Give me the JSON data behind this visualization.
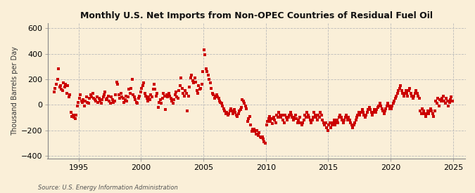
{
  "title": "Monthly U.S. Net Imports from Non-OPEC Countries of Residual Fuel Oil",
  "ylabel": "Thousand Barrels per Day",
  "source": "Source: U.S. Energy Information Administration",
  "background_color": "#faefd8",
  "marker_color": "#cc0000",
  "xlim": [
    1992.5,
    2026.0
  ],
  "ylim": [
    -420,
    640
  ],
  "yticks": [
    -400,
    -200,
    0,
    200,
    400,
    600
  ],
  "xticks": [
    1995,
    2000,
    2005,
    2010,
    2015,
    2020,
    2025
  ],
  "data": [
    [
      1993.04,
      100
    ],
    [
      1993.12,
      130
    ],
    [
      1993.21,
      160
    ],
    [
      1993.29,
      200
    ],
    [
      1993.37,
      280
    ],
    [
      1993.46,
      140
    ],
    [
      1993.54,
      150
    ],
    [
      1993.62,
      120
    ],
    [
      1993.71,
      110
    ],
    [
      1993.79,
      170
    ],
    [
      1993.87,
      140
    ],
    [
      1993.96,
      160
    ],
    [
      1994.04,
      90
    ],
    [
      1994.12,
      150
    ],
    [
      1994.21,
      60
    ],
    [
      1994.29,
      80
    ],
    [
      1994.37,
      -60
    ],
    [
      1994.46,
      -90
    ],
    [
      1994.54,
      -80
    ],
    [
      1994.62,
      -100
    ],
    [
      1994.71,
      -110
    ],
    [
      1994.79,
      -80
    ],
    [
      1994.87,
      -10
    ],
    [
      1994.96,
      20
    ],
    [
      1995.04,
      50
    ],
    [
      1995.12,
      80
    ],
    [
      1995.21,
      30
    ],
    [
      1995.29,
      20
    ],
    [
      1995.37,
      40
    ],
    [
      1995.46,
      -10
    ],
    [
      1995.54,
      30
    ],
    [
      1995.62,
      60
    ],
    [
      1995.71,
      20
    ],
    [
      1995.79,
      10
    ],
    [
      1995.87,
      50
    ],
    [
      1995.96,
      80
    ],
    [
      1996.04,
      60
    ],
    [
      1996.12,
      90
    ],
    [
      1996.21,
      50
    ],
    [
      1996.29,
      40
    ],
    [
      1996.37,
      30
    ],
    [
      1996.46,
      60
    ],
    [
      1996.54,
      20
    ],
    [
      1996.62,
      50
    ],
    [
      1996.71,
      30
    ],
    [
      1996.79,
      10
    ],
    [
      1996.87,
      40
    ],
    [
      1996.96,
      60
    ],
    [
      1997.04,
      80
    ],
    [
      1997.12,
      100
    ],
    [
      1997.21,
      40
    ],
    [
      1997.29,
      50
    ],
    [
      1997.37,
      70
    ],
    [
      1997.46,
      30
    ],
    [
      1997.54,
      10
    ],
    [
      1997.62,
      60
    ],
    [
      1997.71,
      40
    ],
    [
      1997.79,
      20
    ],
    [
      1997.87,
      30
    ],
    [
      1997.96,
      80
    ],
    [
      1998.04,
      180
    ],
    [
      1998.12,
      160
    ],
    [
      1998.21,
      80
    ],
    [
      1998.29,
      50
    ],
    [
      1998.37,
      90
    ],
    [
      1998.46,
      60
    ],
    [
      1998.54,
      50
    ],
    [
      1998.62,
      20
    ],
    [
      1998.71,
      40
    ],
    [
      1998.79,
      70
    ],
    [
      1998.87,
      30
    ],
    [
      1998.96,
      60
    ],
    [
      1999.04,
      120
    ],
    [
      1999.12,
      90
    ],
    [
      1999.21,
      130
    ],
    [
      1999.29,
      200
    ],
    [
      1999.37,
      80
    ],
    [
      1999.46,
      60
    ],
    [
      1999.54,
      40
    ],
    [
      1999.62,
      20
    ],
    [
      1999.71,
      10
    ],
    [
      1999.79,
      50
    ],
    [
      1999.87,
      70
    ],
    [
      1999.96,
      100
    ],
    [
      2000.04,
      130
    ],
    [
      2000.12,
      150
    ],
    [
      2000.21,
      170
    ],
    [
      2000.29,
      90
    ],
    [
      2000.37,
      70
    ],
    [
      2000.46,
      50
    ],
    [
      2000.54,
      30
    ],
    [
      2000.62,
      60
    ],
    [
      2000.71,
      40
    ],
    [
      2000.79,
      80
    ],
    [
      2000.87,
      60
    ],
    [
      2000.96,
      120
    ],
    [
      2001.04,
      160
    ],
    [
      2001.12,
      120
    ],
    [
      2001.21,
      70
    ],
    [
      2001.29,
      90
    ],
    [
      2001.37,
      -20
    ],
    [
      2001.46,
      20
    ],
    [
      2001.54,
      40
    ],
    [
      2001.62,
      10
    ],
    [
      2001.71,
      50
    ],
    [
      2001.79,
      90
    ],
    [
      2001.87,
      70
    ],
    [
      2001.96,
      -40
    ],
    [
      2002.04,
      80
    ],
    [
      2002.12,
      60
    ],
    [
      2002.21,
      90
    ],
    [
      2002.29,
      70
    ],
    [
      2002.37,
      50
    ],
    [
      2002.46,
      30
    ],
    [
      2002.54,
      10
    ],
    [
      2002.62,
      40
    ],
    [
      2002.71,
      80
    ],
    [
      2002.79,
      100
    ],
    [
      2002.87,
      60
    ],
    [
      2002.96,
      50
    ],
    [
      2003.04,
      110
    ],
    [
      2003.12,
      150
    ],
    [
      2003.21,
      210
    ],
    [
      2003.29,
      130
    ],
    [
      2003.37,
      90
    ],
    [
      2003.46,
      70
    ],
    [
      2003.54,
      110
    ],
    [
      2003.62,
      90
    ],
    [
      2003.71,
      -50
    ],
    [
      2003.79,
      70
    ],
    [
      2003.87,
      140
    ],
    [
      2003.96,
      210
    ],
    [
      2004.04,
      230
    ],
    [
      2004.12,
      190
    ],
    [
      2004.21,
      170
    ],
    [
      2004.29,
      210
    ],
    [
      2004.37,
      180
    ],
    [
      2004.46,
      110
    ],
    [
      2004.54,
      90
    ],
    [
      2004.62,
      150
    ],
    [
      2004.71,
      120
    ],
    [
      2004.79,
      130
    ],
    [
      2004.87,
      160
    ],
    [
      2004.96,
      260
    ],
    [
      2005.04,
      430
    ],
    [
      2005.12,
      390
    ],
    [
      2005.21,
      280
    ],
    [
      2005.29,
      260
    ],
    [
      2005.37,
      230
    ],
    [
      2005.46,
      200
    ],
    [
      2005.54,
      170
    ],
    [
      2005.62,
      130
    ],
    [
      2005.71,
      90
    ],
    [
      2005.79,
      80
    ],
    [
      2005.87,
      50
    ],
    [
      2005.96,
      70
    ],
    [
      2006.04,
      80
    ],
    [
      2006.12,
      60
    ],
    [
      2006.21,
      50
    ],
    [
      2006.29,
      30
    ],
    [
      2006.37,
      20
    ],
    [
      2006.46,
      10
    ],
    [
      2006.54,
      -10
    ],
    [
      2006.62,
      -30
    ],
    [
      2006.71,
      -50
    ],
    [
      2006.79,
      -70
    ],
    [
      2006.87,
      -60
    ],
    [
      2006.96,
      -80
    ],
    [
      2007.04,
      -70
    ],
    [
      2007.12,
      -50
    ],
    [
      2007.21,
      -30
    ],
    [
      2007.29,
      -50
    ],
    [
      2007.37,
      -70
    ],
    [
      2007.46,
      -40
    ],
    [
      2007.54,
      -60
    ],
    [
      2007.62,
      -80
    ],
    [
      2007.71,
      -90
    ],
    [
      2007.79,
      -70
    ],
    [
      2007.87,
      -50
    ],
    [
      2007.96,
      -40
    ],
    [
      2008.04,
      -20
    ],
    [
      2008.12,
      40
    ],
    [
      2008.21,
      30
    ],
    [
      2008.29,
      10
    ],
    [
      2008.37,
      -10
    ],
    [
      2008.46,
      -30
    ],
    [
      2008.54,
      -130
    ],
    [
      2008.62,
      -110
    ],
    [
      2008.71,
      -90
    ],
    [
      2008.79,
      -160
    ],
    [
      2008.87,
      -210
    ],
    [
      2008.96,
      -190
    ],
    [
      2009.04,
      -190
    ],
    [
      2009.12,
      -210
    ],
    [
      2009.21,
      -230
    ],
    [
      2009.29,
      -200
    ],
    [
      2009.37,
      -240
    ],
    [
      2009.46,
      -220
    ],
    [
      2009.54,
      -250
    ],
    [
      2009.62,
      -260
    ],
    [
      2009.71,
      -250
    ],
    [
      2009.79,
      -270
    ],
    [
      2009.87,
      -290
    ],
    [
      2009.96,
      -300
    ],
    [
      2010.04,
      -160
    ],
    [
      2010.12,
      -130
    ],
    [
      2010.21,
      -110
    ],
    [
      2010.29,
      -90
    ],
    [
      2010.37,
      -130
    ],
    [
      2010.46,
      -110
    ],
    [
      2010.54,
      -150
    ],
    [
      2010.62,
      -100
    ],
    [
      2010.71,
      -120
    ],
    [
      2010.79,
      -140
    ],
    [
      2010.87,
      -80
    ],
    [
      2010.96,
      -100
    ],
    [
      2011.04,
      -60
    ],
    [
      2011.12,
      -80
    ],
    [
      2011.21,
      -100
    ],
    [
      2011.29,
      -80
    ],
    [
      2011.37,
      -120
    ],
    [
      2011.46,
      -140
    ],
    [
      2011.54,
      -80
    ],
    [
      2011.62,
      -100
    ],
    [
      2011.71,
      -120
    ],
    [
      2011.79,
      -100
    ],
    [
      2011.87,
      -80
    ],
    [
      2011.96,
      -60
    ],
    [
      2012.04,
      -80
    ],
    [
      2012.12,
      -100
    ],
    [
      2012.21,
      -120
    ],
    [
      2012.29,
      -100
    ],
    [
      2012.37,
      -80
    ],
    [
      2012.46,
      -110
    ],
    [
      2012.54,
      -140
    ],
    [
      2012.62,
      -120
    ],
    [
      2012.71,
      -100
    ],
    [
      2012.79,
      -140
    ],
    [
      2012.87,
      -160
    ],
    [
      2012.96,
      -140
    ],
    [
      2013.04,
      -120
    ],
    [
      2013.12,
      -80
    ],
    [
      2013.21,
      -100
    ],
    [
      2013.29,
      -60
    ],
    [
      2013.37,
      -80
    ],
    [
      2013.46,
      -100
    ],
    [
      2013.54,
      -120
    ],
    [
      2013.62,
      -140
    ],
    [
      2013.71,
      -120
    ],
    [
      2013.79,
      -100
    ],
    [
      2013.87,
      -60
    ],
    [
      2013.96,
      -80
    ],
    [
      2014.04,
      -100
    ],
    [
      2014.12,
      -120
    ],
    [
      2014.21,
      -80
    ],
    [
      2014.29,
      -100
    ],
    [
      2014.37,
      -60
    ],
    [
      2014.46,
      -80
    ],
    [
      2014.54,
      -120
    ],
    [
      2014.62,
      -140
    ],
    [
      2014.71,
      -160
    ],
    [
      2014.79,
      -140
    ],
    [
      2014.87,
      -180
    ],
    [
      2014.96,
      -200
    ],
    [
      2015.04,
      -160
    ],
    [
      2015.12,
      -140
    ],
    [
      2015.21,
      -180
    ],
    [
      2015.29,
      -160
    ],
    [
      2015.37,
      -140
    ],
    [
      2015.46,
      -120
    ],
    [
      2015.54,
      -160
    ],
    [
      2015.62,
      -140
    ],
    [
      2015.71,
      -120
    ],
    [
      2015.79,
      -140
    ],
    [
      2015.87,
      -100
    ],
    [
      2015.96,
      -80
    ],
    [
      2016.04,
      -100
    ],
    [
      2016.12,
      -120
    ],
    [
      2016.21,
      -140
    ],
    [
      2016.29,
      -120
    ],
    [
      2016.37,
      -100
    ],
    [
      2016.46,
      -80
    ],
    [
      2016.54,
      -120
    ],
    [
      2016.62,
      -100
    ],
    [
      2016.71,
      -120
    ],
    [
      2016.79,
      -140
    ],
    [
      2016.87,
      -160
    ],
    [
      2016.96,
      -180
    ],
    [
      2017.04,
      -160
    ],
    [
      2017.12,
      -140
    ],
    [
      2017.21,
      -120
    ],
    [
      2017.29,
      -100
    ],
    [
      2017.37,
      -80
    ],
    [
      2017.46,
      -60
    ],
    [
      2017.54,
      -80
    ],
    [
      2017.62,
      -60
    ],
    [
      2017.71,
      -40
    ],
    [
      2017.79,
      -60
    ],
    [
      2017.87,
      -80
    ],
    [
      2017.96,
      -100
    ],
    [
      2018.04,
      -80
    ],
    [
      2018.12,
      -60
    ],
    [
      2018.21,
      -40
    ],
    [
      2018.29,
      -20
    ],
    [
      2018.37,
      -40
    ],
    [
      2018.46,
      -60
    ],
    [
      2018.54,
      -80
    ],
    [
      2018.62,
      -60
    ],
    [
      2018.71,
      -40
    ],
    [
      2018.79,
      -60
    ],
    [
      2018.87,
      -40
    ],
    [
      2018.96,
      -20
    ],
    [
      2019.04,
      -10
    ],
    [
      2019.12,
      10
    ],
    [
      2019.21,
      -10
    ],
    [
      2019.29,
      -30
    ],
    [
      2019.37,
      -50
    ],
    [
      2019.46,
      -70
    ],
    [
      2019.54,
      -50
    ],
    [
      2019.62,
      -30
    ],
    [
      2019.71,
      -10
    ],
    [
      2019.79,
      10
    ],
    [
      2019.87,
      -10
    ],
    [
      2019.96,
      -30
    ],
    [
      2020.04,
      -30
    ],
    [
      2020.12,
      -10
    ],
    [
      2020.21,
      10
    ],
    [
      2020.29,
      30
    ],
    [
      2020.37,
      50
    ],
    [
      2020.46,
      70
    ],
    [
      2020.54,
      90
    ],
    [
      2020.62,
      110
    ],
    [
      2020.71,
      130
    ],
    [
      2020.79,
      150
    ],
    [
      2020.87,
      110
    ],
    [
      2020.96,
      90
    ],
    [
      2021.04,
      70
    ],
    [
      2021.12,
      90
    ],
    [
      2021.21,
      110
    ],
    [
      2021.29,
      90
    ],
    [
      2021.37,
      70
    ],
    [
      2021.46,
      110
    ],
    [
      2021.54,
      130
    ],
    [
      2021.62,
      90
    ],
    [
      2021.71,
      70
    ],
    [
      2021.79,
      50
    ],
    [
      2021.87,
      70
    ],
    [
      2021.96,
      90
    ],
    [
      2022.04,
      110
    ],
    [
      2022.12,
      90
    ],
    [
      2022.21,
      70
    ],
    [
      2022.29,
      50
    ],
    [
      2022.37,
      -50
    ],
    [
      2022.46,
      -70
    ],
    [
      2022.54,
      -30
    ],
    [
      2022.62,
      -50
    ],
    [
      2022.71,
      -70
    ],
    [
      2022.79,
      -90
    ],
    [
      2022.87,
      -70
    ],
    [
      2022.96,
      -50
    ],
    [
      2023.04,
      -70
    ],
    [
      2023.12,
      -50
    ],
    [
      2023.21,
      -30
    ],
    [
      2023.29,
      -50
    ],
    [
      2023.37,
      -70
    ],
    [
      2023.46,
      -90
    ],
    [
      2023.54,
      -50
    ],
    [
      2023.62,
      30
    ],
    [
      2023.71,
      10
    ],
    [
      2023.79,
      50
    ],
    [
      2023.87,
      -10
    ],
    [
      2023.96,
      40
    ],
    [
      2024.04,
      30
    ],
    [
      2024.12,
      50
    ],
    [
      2024.21,
      70
    ],
    [
      2024.29,
      30
    ],
    [
      2024.37,
      10
    ],
    [
      2024.46,
      50
    ],
    [
      2024.54,
      30
    ],
    [
      2024.62,
      -10
    ],
    [
      2024.71,
      20
    ],
    [
      2024.79,
      40
    ],
    [
      2024.87,
      60
    ],
    [
      2024.96,
      30
    ]
  ]
}
